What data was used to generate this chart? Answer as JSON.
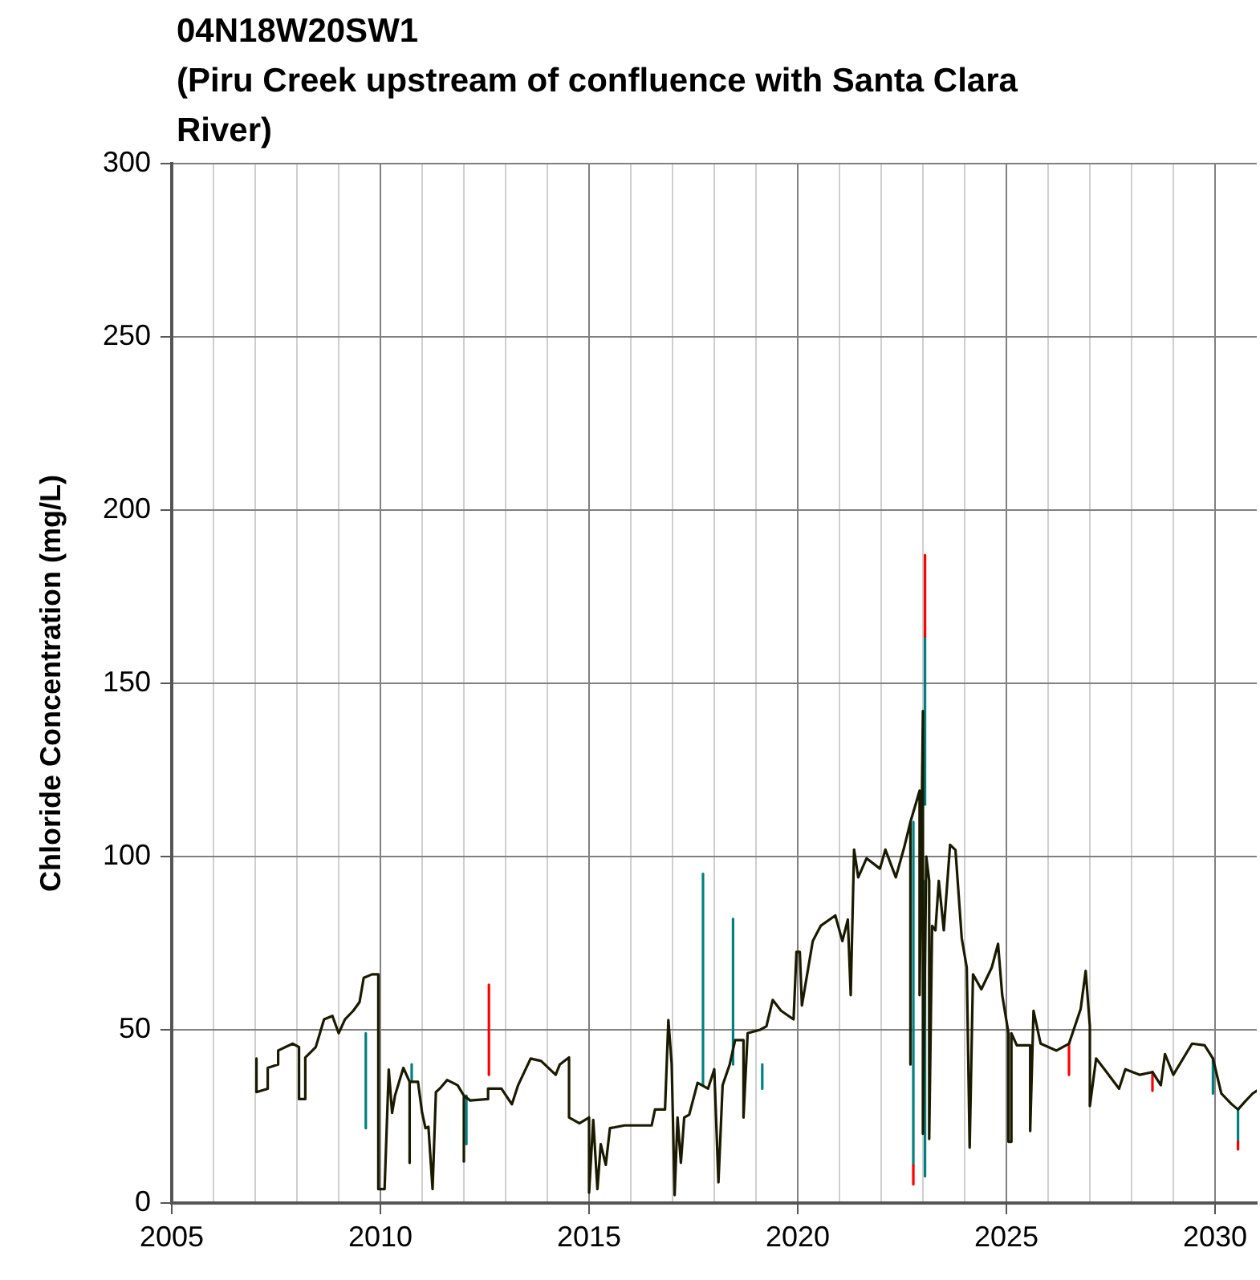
{
  "chart_data": {
    "type": "line",
    "title": "04N18W20SW1",
    "subtitle": "(Piru Creek upstream of confluence with Santa Clara River)",
    "ylabel": "Chloride Concentration (mg/L)",
    "xlim": [
      2005,
      2031
    ],
    "xticks": [
      2005,
      {
        "value": 2006,
        "label": null
      },
      {
        "value": 2007,
        "label": null
      },
      {
        "value": 2008,
        "label": null
      },
      {
        "value": 2009,
        "label": null
      },
      2010,
      {
        "value": 2011,
        "label": null
      },
      {
        "value": 2012,
        "label": null
      },
      {
        "value": 2013,
        "label": null
      },
      {
        "value": 2014,
        "label": null
      },
      2015,
      {
        "value": 2016,
        "label": null
      },
      {
        "value": 2017,
        "label": null
      },
      {
        "value": 2018,
        "label": null
      },
      {
        "value": 2019,
        "label": null
      },
      2020,
      {
        "value": 2021,
        "label": null
      },
      {
        "value": 2022,
        "label": null
      },
      {
        "value": 2023,
        "label": null
      },
      {
        "value": 2024,
        "label": null
      },
      2025,
      {
        "value": 2026,
        "label": null
      },
      {
        "value": 2027,
        "label": null
      },
      {
        "value": 2028,
        "label": null
      },
      {
        "value": 2029,
        "label": null
      },
      2030
    ],
    "ylim": [
      0,
      300
    ],
    "yticks": [
      0,
      50,
      100,
      150,
      200,
      250,
      300
    ],
    "grid": true,
    "legend": false,
    "marker": "none",
    "series": [
      {
        "color": "#008080",
        "x": [
          2009.65,
          2009.65
        ],
        "values": [
          49,
          21.6
        ]
      },
      {
        "color": "#008080",
        "x": [
          2010.75,
          2010.75
        ],
        "values": [
          35,
          40
        ]
      },
      {
        "color": "#008080",
        "x": [
          2012.06,
          2012.06
        ],
        "values": [
          31,
          17
        ]
      },
      {
        "color": "#008080",
        "x": [
          2017.73,
          2017.73
        ],
        "values": [
          34,
          95
        ]
      },
      {
        "color": "#008080",
        "x": [
          2018.45,
          2018.45
        ],
        "values": [
          40,
          82
        ]
      },
      {
        "color": "#008080",
        "x": [
          2019.15,
          2019.15
        ],
        "values": [
          40,
          33
        ]
      },
      {
        "color": "#008080",
        "x": [
          2022.77,
          2022.77
        ],
        "values": [
          110,
          10.8
        ]
      },
      {
        "color": "#008080",
        "x": [
          2023.05,
          2023.05
        ],
        "values": [
          115,
          163.6
        ]
      },
      {
        "color": "#008080",
        "x": [
          2023.05,
          2023.05
        ],
        "values": [
          93,
          7.7
        ]
      },
      {
        "color": "#008080",
        "x": [
          2029.95,
          2029.95
        ],
        "values": [
          41.7,
          31.6
        ]
      },
      {
        "color": "#008080",
        "x": [
          2030.55,
          2030.55
        ],
        "values": [
          27,
          17.7
        ]
      },
      {
        "color": "#ff0000",
        "x": [
          2012.6,
          2012.6
        ],
        "values": [
          37,
          63
        ]
      },
      {
        "color": "#ff0000",
        "x": [
          2022.77,
          2022.77
        ],
        "values": [
          10.8,
          5.4
        ]
      },
      {
        "color": "#ff0000",
        "x": [
          2023.05,
          2023.05
        ],
        "values": [
          163.6,
          187
        ]
      },
      {
        "color": "#ff0000",
        "x": [
          2026.5,
          2026.5
        ],
        "values": [
          46,
          37
        ]
      },
      {
        "color": "#ff0000",
        "x": [
          2028.5,
          2028.5
        ],
        "values": [
          37.8,
          32.4
        ]
      },
      {
        "color": "#ff0000",
        "x": [
          2030.55,
          2030.55
        ],
        "values": [
          17.7,
          15.5
        ]
      },
      {
        "color": "#1a1a00",
        "x": [
          2007.03,
          2007.03,
          2007.3,
          2007.3,
          2007.55,
          2007.55,
          2007.9,
          2008.05,
          2008.05,
          2008.2,
          2008.2,
          2008.45,
          2008.65,
          2008.85,
          2009.0,
          2009.15,
          2009.35,
          2009.5,
          2009.6,
          2009.8,
          2009.95,
          2009.95,
          2010.1,
          2010.2,
          2010.28,
          2010.35,
          2010.55,
          2010.7,
          2010.7,
          2010.7,
          2010.9,
          2011.0,
          2011.08,
          2011.15,
          2011.25,
          2011.33,
          2011.42,
          2011.6,
          2011.85,
          2012.0,
          2012.0,
          2012.0,
          2012.15,
          2012.58,
          2012.58,
          2012.9,
          2013.15,
          2013.3,
          2013.6,
          2013.85,
          2014.2,
          2014.3,
          2014.52,
          2014.52,
          2014.77,
          2015.0,
          2015.0,
          2015.1,
          2015.2,
          2015.28,
          2015.4,
          2015.5,
          2015.85,
          2016.5,
          2016.58,
          2016.82,
          2016.9,
          2016.98,
          2017.05,
          2017.12,
          2017.2,
          2017.28,
          2017.4,
          2017.6,
          2017.85,
          2018.0,
          2018.1,
          2018.2,
          2018.37,
          2018.5,
          2018.7,
          2018.7,
          2018.8,
          2019.1,
          2019.25,
          2019.4,
          2019.6,
          2019.9,
          2019.97,
          2020.05,
          2020.1,
          2020.36,
          2020.55,
          2020.9,
          2021.07,
          2021.2,
          2021.27,
          2021.35,
          2021.45,
          2021.65,
          2021.97,
          2022.1,
          2022.35,
          2022.55,
          2022.7,
          2022.7,
          2022.7,
          2022.84,
          2022.92,
          2022.92,
          2023.0,
          2023.0,
          2023.08,
          2023.15,
          2023.15,
          2023.22,
          2023.3,
          2023.38,
          2023.5,
          2023.65,
          2023.78,
          2023.93,
          2024.05,
          2024.12,
          2024.2,
          2024.4,
          2024.65,
          2024.8,
          2024.9,
          2025.05,
          2025.05,
          2025.12,
          2025.12,
          2025.25,
          2025.57,
          2025.57,
          2025.65,
          2025.82,
          2026.2,
          2026.5,
          2026.78,
          2026.9,
          2027.0,
          2027.0,
          2027.15,
          2027.35,
          2027.7,
          2027.85,
          2028.2,
          2028.5,
          2028.7,
          2028.8,
          2029.0,
          2029.45,
          2029.75,
          2029.95,
          2030.15,
          2030.4,
          2030.55,
          2030.72,
          2030.9,
          2031.0
        ],
        "values": [
          41.7,
          32,
          33,
          39,
          40,
          44,
          46,
          45,
          30,
          30,
          42,
          45,
          53,
          54,
          49,
          53,
          55.5,
          58,
          65,
          66,
          66,
          4,
          4,
          38.5,
          26,
          31,
          39,
          35,
          11.6,
          35,
          35,
          26,
          21.6,
          22,
          4,
          32,
          33,
          35.5,
          34,
          31,
          12,
          31,
          29.6,
          30,
          33,
          33,
          28.5,
          34,
          41.7,
          41,
          37,
          40,
          42,
          24.7,
          23,
          24.7,
          3,
          24,
          4,
          17,
          11,
          21.6,
          22.4,
          22.4,
          27,
          27,
          52.8,
          40,
          2.3,
          24.7,
          11.6,
          24.7,
          25.5,
          34.7,
          33,
          38.6,
          6,
          34,
          40,
          47,
          47,
          24.7,
          49,
          50,
          51,
          58.6,
          55.5,
          53,
          72.5,
          72.5,
          57,
          75.6,
          80,
          83,
          75.6,
          81.8,
          60,
          102,
          94,
          99.5,
          96.5,
          102,
          94,
          102.6,
          110,
          40,
          110,
          115.7,
          119,
          60,
          142,
          20,
          100,
          93,
          18.5,
          80,
          78.7,
          93,
          78.7,
          103.4,
          101.9,
          76.4,
          68,
          16,
          66,
          61.7,
          68,
          74.8,
          60,
          49,
          17.7,
          17.7,
          49,
          45.5,
          45.5,
          20.8,
          55.5,
          46,
          44,
          46,
          56,
          67,
          51,
          28,
          41.7,
          38.6,
          33,
          38.6,
          37,
          37.8,
          34,
          43,
          37,
          46,
          45.5,
          41.7,
          31.6,
          28.5,
          27,
          29.3,
          31.6,
          32.4
        ]
      }
    ]
  }
}
